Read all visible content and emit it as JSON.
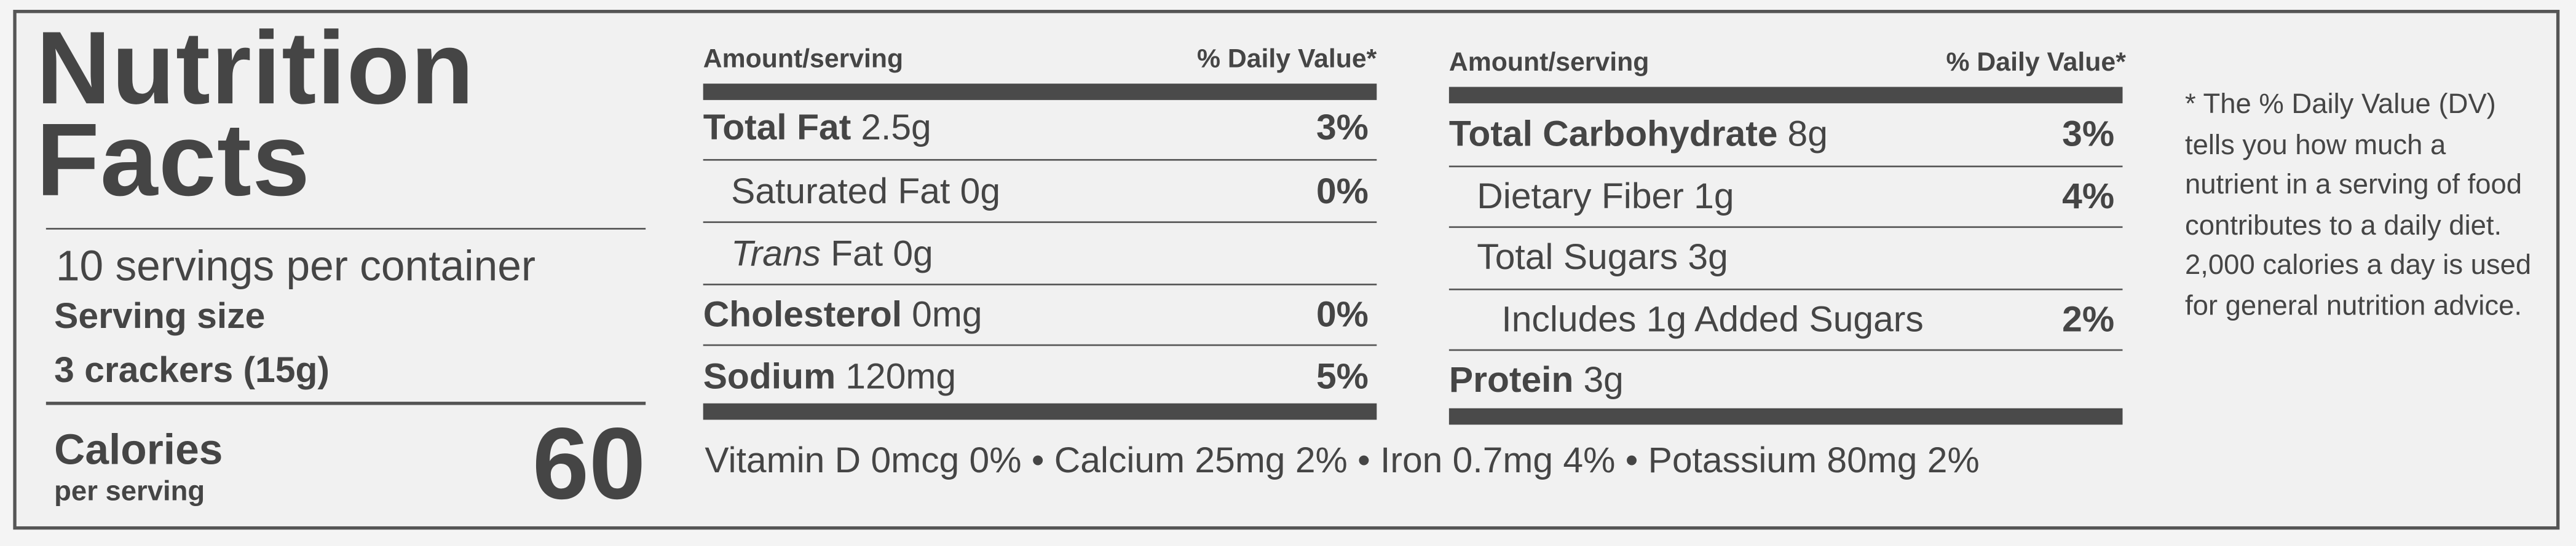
{
  "label": {
    "title": "Nutrition Facts",
    "servings_per_container": "10 servings per container",
    "serving_size_label": "Serving size",
    "serving_size": "3 crackers (15g)",
    "calories_label": "Calories",
    "calories_sublabel": "per serving",
    "calories": 60,
    "left_table": {
      "amount_header": "Amount/serving",
      "dv_header": "% Daily Value*",
      "rows": [
        {
          "nutrient": "Total Fat",
          "amount": "2.5g",
          "dv": "3%"
        },
        {
          "name": "Saturated Fat 0g",
          "dv": "0%"
        },
        {
          "name_italic": "Trans",
          "name": "Fat 0g"
        },
        {
          "nutrient": "Cholesterol",
          "amount": "0mg",
          "dv": "0%"
        },
        {
          "nutrient": "Sodium",
          "amount": "120mg",
          "dv": "5%"
        }
      ]
    },
    "right_table": {
      "amount_header": "Amount/serving",
      "dv_header": "% Daily Value*",
      "rows": [
        {
          "nutrient": "Total Carbohydrate",
          "amount": "8g",
          "dv": "3%"
        },
        {
          "name": "Dietary Fiber 1g",
          "dv": "4%"
        },
        {
          "name": "Total Sugars 3g"
        },
        {
          "name": "Includes 1g Added Sugars",
          "dv": "2%"
        },
        {
          "nutrient": "Protein",
          "amount": "3g"
        }
      ]
    },
    "vitamins_minerals": "Vitamin D 0mcg 0% • Calcium 25mg 2% • Iron 0.7mg 4% • Potassium 80mg 2%",
    "footnote": "* The % Daily Value (DV) tells you how much a nutrient in a serving of food contributes to a daily diet.  2,000 calories a day is used for general nutrition advice."
  }
}
